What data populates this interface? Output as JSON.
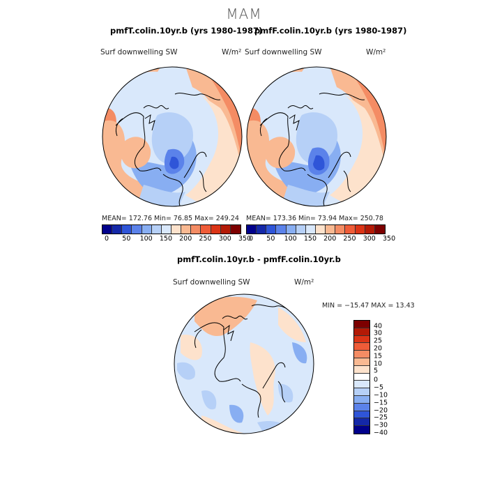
{
  "suptitle": "MAM",
  "panels": [
    {
      "title": "pmfT.colin.10yr.b (yrs 1980-1987)",
      "variable": "Surf downwelling SW",
      "units": "W/m²",
      "stats": "MEAN= 172.76   Min=  76.85   Max= 249.24"
    },
    {
      "title": "pmfF.colin.10yr.b (yrs 1980-1987)",
      "variable": "Surf downwelling SW",
      "units": "W/m²",
      "stats": "MEAN= 173.36   Min=  73.94   Max= 250.78"
    },
    {
      "title": "pmfT.colin.10yr.b - pmfF.colin.10yr.b",
      "variable": "Surf downwelling SW",
      "units": "W/m²",
      "stats": "MIN = −15.47 MAX =  13.43"
    }
  ],
  "abs_colorbar": {
    "colors": [
      "#00008b",
      "#1428a8",
      "#2f55d8",
      "#5b82ea",
      "#88aef2",
      "#b6d0f7",
      "#d9e8fb",
      "#fde2cc",
      "#f9b992",
      "#f48c64",
      "#ef5c38",
      "#db3416",
      "#b31a06",
      "#7d0000"
    ],
    "ticks": [
      "0",
      "50",
      "100",
      "150",
      "200",
      "250",
      "300",
      "350"
    ]
  },
  "diff_colorbar": {
    "colors": [
      "#7d0000",
      "#b31a06",
      "#db3416",
      "#ef5c38",
      "#f48c64",
      "#f9b992",
      "#fde2cc",
      "#ffffff",
      "#d9e8fb",
      "#b6d0f7",
      "#88aef2",
      "#5b82ea",
      "#2f55d8",
      "#1428a8",
      "#00008b"
    ],
    "ticks": [
      "40",
      "30",
      "25",
      "20",
      "15",
      "10",
      "5",
      "0",
      "−5",
      "−10",
      "−15",
      "−20",
      "−25",
      "−30",
      "−40"
    ]
  }
}
